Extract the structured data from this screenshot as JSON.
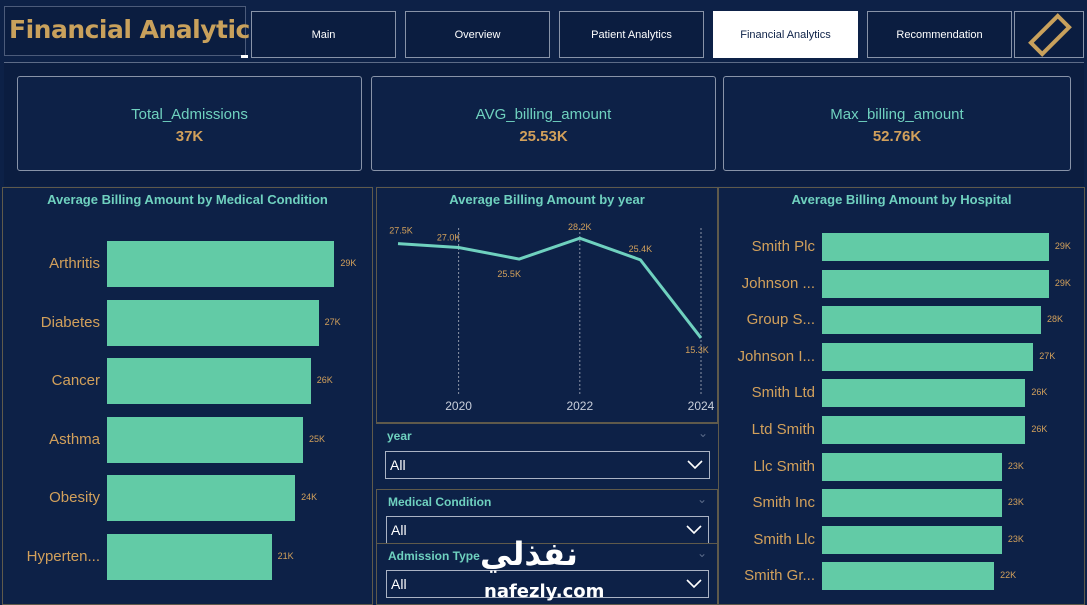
{
  "header": {
    "title": "Financial Analytics"
  },
  "nav": {
    "items": [
      {
        "label": "Main"
      },
      {
        "label": "Overview"
      },
      {
        "label": "Patient Analytics"
      },
      {
        "label": "Financial Analytics",
        "active": true
      },
      {
        "label": "Recommendation"
      }
    ]
  },
  "kpis": [
    {
      "label": "Total_Admissions",
      "value": "37K"
    },
    {
      "label": "AVG_billing_amount",
      "value": "25.53K"
    },
    {
      "label": "Max_billing_amount",
      "value": "52.76K"
    }
  ],
  "colors": {
    "background": "#0d2147",
    "accent_teal": "#6fd1bf",
    "bar": "#62cba6",
    "gold": "#d2a05b"
  },
  "chart_data": [
    {
      "type": "bar",
      "orientation": "horizontal",
      "title": "Average Billing Amount by Medical Condition",
      "categories": [
        "Arthritis",
        "Diabetes",
        "Cancer",
        "Asthma",
        "Obesity",
        "Hyperten..."
      ],
      "values": [
        29,
        27,
        26,
        25,
        24,
        21
      ],
      "value_labels": [
        "29K",
        "27K",
        "26K",
        "25K",
        "24K",
        "21K"
      ],
      "xlim": [
        0,
        31
      ]
    },
    {
      "type": "line",
      "title": "Average Billing Amount by year",
      "x": [
        2019,
        2020,
        2021,
        2022,
        2023,
        2024
      ],
      "values": [
        27.5,
        27.0,
        25.5,
        28.2,
        25.4,
        15.3
      ],
      "value_labels": [
        "27.5K",
        "27.0K",
        "25.5K",
        "28.2K",
        "25.4K",
        "15.3K"
      ],
      "x_ticks": [
        "2020",
        "2022",
        "2024"
      ],
      "ylim": [
        14,
        29
      ]
    },
    {
      "type": "bar",
      "orientation": "horizontal",
      "title": "Average Billing Amount by Hospital",
      "categories": [
        "Smith Plc",
        "Johnson ...",
        "Group S...",
        "Johnson I...",
        "Smith Ltd",
        "Ltd Smith",
        "Llc Smith",
        "Smith Inc",
        "Smith Llc",
        "Smith Gr..."
      ],
      "values": [
        29,
        29,
        28,
        27,
        26,
        26,
        23,
        23,
        23,
        22
      ],
      "value_labels": [
        "29K",
        "29K",
        "28K",
        "27K",
        "26K",
        "26K",
        "23K",
        "23K",
        "23K",
        "22K"
      ],
      "xlim": [
        0,
        29.4
      ]
    }
  ],
  "slicers": [
    {
      "title": "year",
      "value": "All"
    },
    {
      "title": "Medical Condition",
      "value": "All"
    },
    {
      "title": "Admission Type",
      "value": "All"
    }
  ],
  "watermark": {
    "arabic": "نفذلي",
    "latin": "nafezly.com"
  }
}
